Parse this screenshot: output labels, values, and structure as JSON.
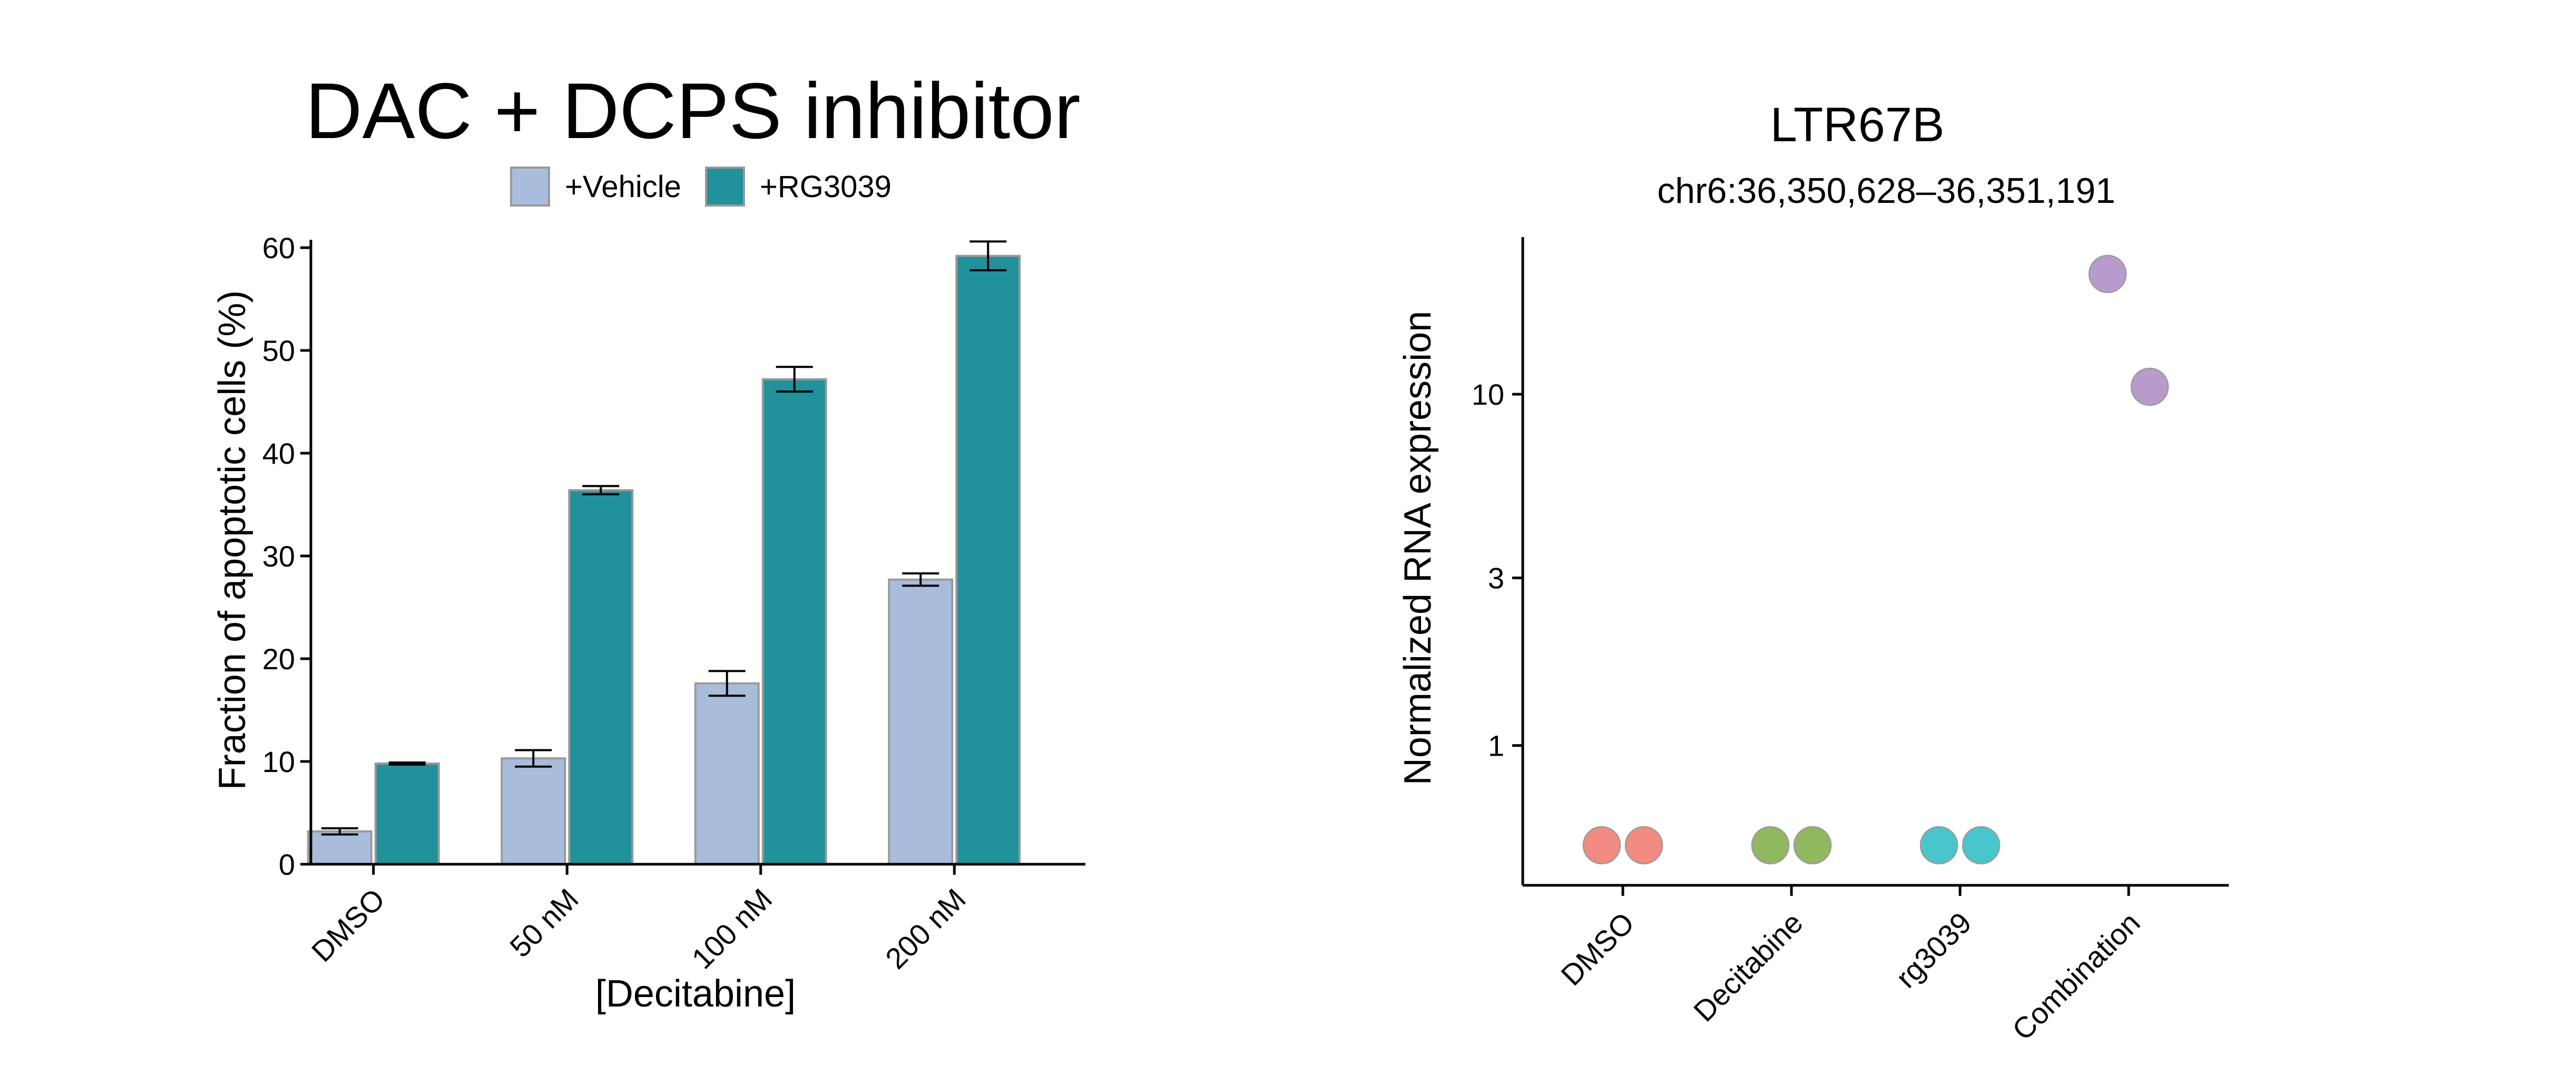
{
  "chart_data": [
    {
      "type": "bar",
      "title": "DAC + DCPS inhibitor",
      "xlabel": "[Decitabine]",
      "ylabel": "Fraction of apoptotic cells (%)",
      "ylim": [
        0,
        60
      ],
      "yticks": [
        0,
        10,
        20,
        30,
        40,
        50,
        60
      ],
      "categories": [
        "DMSO",
        "50 nM",
        "100 nM",
        "200 nM"
      ],
      "legend_position": "top",
      "series": [
        {
          "name": "+Vehicle",
          "color": "#a9bcdc",
          "values": [
            3.2,
            10.3,
            17.6,
            27.7
          ],
          "errors": [
            0.3,
            0.8,
            1.2,
            0.6
          ]
        },
        {
          "name": "+RG3039",
          "color": "#21919b",
          "values": [
            9.8,
            36.4,
            47.2,
            59.2
          ],
          "errors": [
            0.1,
            0.4,
            1.2,
            1.4
          ]
        }
      ]
    },
    {
      "type": "scatter",
      "title": "LTR67B",
      "subtitle": "chr6:36,350,628–36,351,191",
      "xlabel": "",
      "ylabel": "Normalized RNA expression",
      "yscale": "log",
      "yticks": [
        1,
        3,
        10
      ],
      "ylim": [
        0.4,
        28
      ],
      "categories": [
        "DMSO",
        "Decitabine",
        "rg3039",
        "Combination"
      ],
      "points": [
        {
          "category": "DMSO",
          "y": 0.52,
          "color": "#f28b82"
        },
        {
          "category": "DMSO",
          "y": 0.52,
          "color": "#f28b82"
        },
        {
          "category": "Decitabine",
          "y": 0.52,
          "color": "#8fb85f"
        },
        {
          "category": "Decitabine",
          "y": 0.52,
          "color": "#8fb85f"
        },
        {
          "category": "rg3039",
          "y": 0.52,
          "color": "#48c6cc"
        },
        {
          "category": "rg3039",
          "y": 0.52,
          "color": "#48c6cc"
        },
        {
          "category": "Combination",
          "y": 22,
          "color": "#b89bcc"
        },
        {
          "category": "Combination",
          "y": 10.5,
          "color": "#b89bcc"
        }
      ]
    }
  ]
}
